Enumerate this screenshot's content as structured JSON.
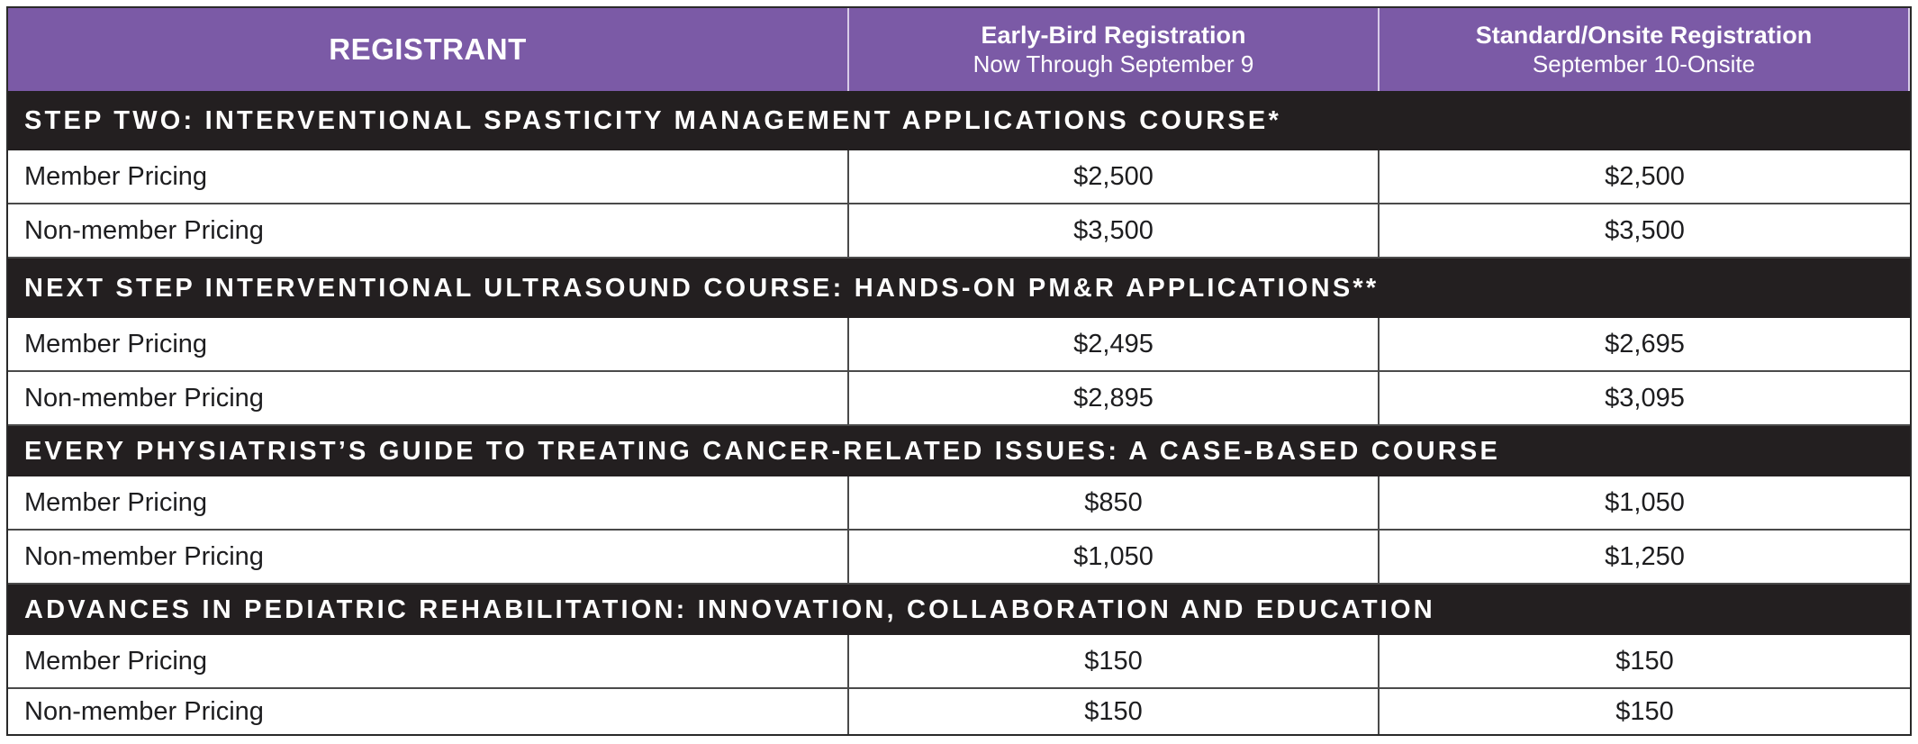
{
  "header": {
    "col1": "REGISTRANT",
    "col2_title": "Early-Bird Registration",
    "col2_sub": "Now Through September 9",
    "col3_title": "Standard/Onsite Registration",
    "col3_sub": "September 10-Onsite"
  },
  "colors": {
    "header_bg": "#7b5aa6",
    "section_bg": "#231f20",
    "text": "#1d1d1f"
  },
  "sections": [
    {
      "title": "STEP TWO: INTERVENTIONAL SPASTICITY MANAGEMENT APPLICATIONS COURSE*",
      "rows": [
        {
          "label": "Member Pricing",
          "early": "$2,500",
          "standard": "$2,500"
        },
        {
          "label": "Non-member Pricing",
          "early": "$3,500",
          "standard": "$3,500"
        }
      ]
    },
    {
      "title": "NEXT STEP INTERVENTIONAL ULTRASOUND COURSE: HANDS-ON PM&R APPLICATIONS**",
      "rows": [
        {
          "label": "Member Pricing",
          "early": "$2,495",
          "standard": "$2,695"
        },
        {
          "label": "Non-member Pricing",
          "early": "$2,895",
          "standard": "$3,095"
        }
      ]
    },
    {
      "title": "EVERY PHYSIATRIST’S GUIDE TO TREATING CANCER-RELATED ISSUES: A CASE-BASED COURSE",
      "rows": [
        {
          "label": "Member Pricing",
          "early": "$850",
          "standard": "$1,050"
        },
        {
          "label": "Non-member Pricing",
          "early": "$1,050",
          "standard": "$1,250"
        }
      ]
    },
    {
      "title": "ADVANCES IN PEDIATRIC REHABILITATION: INNOVATION, COLLABORATION AND EDUCATION",
      "rows": [
        {
          "label": "Member Pricing",
          "early": "$150",
          "standard": "$150"
        },
        {
          "label": "Non-member Pricing",
          "early": "$150",
          "standard": "$150"
        }
      ]
    }
  ]
}
